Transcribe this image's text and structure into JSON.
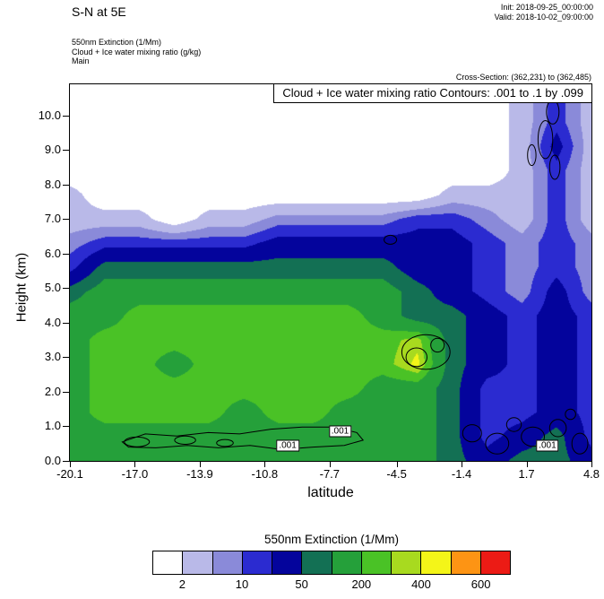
{
  "header": {
    "title": "S-N at 5E",
    "init": "Init: 2018-09-25_00:00:00",
    "valid": "Valid: 2018-10-02_09:00:00",
    "field_lines": [
      "550nm Extinction  (1/Mm)",
      "Cloud + Ice water mixing ratio  (g/kg)",
      "Main"
    ],
    "cross_section": "Cross-Section: (362,231) to (362,485)"
  },
  "chart_data": {
    "type": "filled_contour",
    "title": "Cloud + Ice water mixing ratio Contours: .001 to .1 by .099",
    "field_name": "550nm Extinction (1/Mm)",
    "overlay_name": "Cloud + Ice water mixing ratio (g/kg)",
    "xlabel": "latitude",
    "ylabel": "Height (km)",
    "xlim": [
      -20.1,
      4.8
    ],
    "ylim": [
      0,
      10.9
    ],
    "x_ticks": [
      "-20.1",
      "-17.0",
      "-13.9",
      "-10.8",
      "-7.7",
      "-4.5",
      "-1.4",
      "1.7",
      "4.8"
    ],
    "y_ticks": [
      "0.0",
      "1.0",
      "2.0",
      "3.0",
      "4.0",
      "5.0",
      "6.0",
      "7.0",
      "8.0",
      "9.0",
      "10.0"
    ],
    "levels": [
      2,
      5,
      10,
      20,
      50,
      100,
      200,
      300,
      400,
      500,
      600
    ],
    "palette": [
      "#ffffff",
      "#b9b9e8",
      "#8a8ad9",
      "#2b2bd0",
      "#04049c",
      "#137054",
      "#25a03a",
      "#4ac226",
      "#a8da1f",
      "#f4f518",
      "#fd9414",
      "#ec1b15"
    ],
    "grid": {
      "units": "1/Mm",
      "x": [
        -20.1,
        -18.44,
        -16.78,
        -15.12,
        -13.46,
        -11.8,
        -10.14,
        -8.48,
        -6.82,
        -5.16,
        -3.5,
        -1.84,
        -0.18,
        1.48,
        3.14,
        4.8
      ],
      "y": [
        0,
        0.7,
        1.4,
        2.1,
        2.8,
        3.5,
        4.2,
        4.9,
        5.6,
        6.3,
        7.0,
        7.7,
        8.4,
        9.1,
        9.8,
        10.5
      ],
      "values": [
        [
          150,
          150,
          150,
          150,
          150,
          150,
          150,
          150,
          150,
          150,
          150,
          70,
          30,
          70,
          70,
          30
        ],
        [
          150,
          150,
          150,
          150,
          150,
          150,
          150,
          150,
          150,
          150,
          150,
          70,
          15,
          30,
          70,
          15
        ],
        [
          150,
          250,
          250,
          250,
          250,
          150,
          250,
          250,
          150,
          150,
          150,
          70,
          15,
          15,
          30,
          15
        ],
        [
          150,
          250,
          250,
          250,
          250,
          250,
          250,
          250,
          250,
          150,
          150,
          70,
          15,
          15,
          30,
          15
        ],
        [
          150,
          250,
          250,
          150,
          250,
          250,
          250,
          250,
          250,
          250,
          450,
          70,
          30,
          15,
          30,
          15
        ],
        [
          150,
          250,
          250,
          250,
          250,
          250,
          250,
          250,
          250,
          250,
          350,
          70,
          30,
          15,
          30,
          15
        ],
        [
          150,
          150,
          250,
          250,
          250,
          250,
          250,
          250,
          250,
          150,
          70,
          70,
          30,
          15,
          30,
          15
        ],
        [
          70,
          150,
          150,
          150,
          150,
          150,
          150,
          150,
          150,
          150,
          70,
          30,
          15,
          7,
          30,
          7
        ],
        [
          15,
          70,
          70,
          70,
          70,
          70,
          70,
          70,
          70,
          70,
          30,
          30,
          15,
          7,
          15,
          7
        ],
        [
          7,
          15,
          15,
          15,
          15,
          15,
          30,
          30,
          30,
          30,
          30,
          30,
          15,
          7,
          15,
          7
        ],
        [
          3,
          3,
          3,
          1,
          3,
          3,
          7,
          7,
          7,
          7,
          15,
          15,
          7,
          3,
          15,
          3
        ],
        [
          3,
          1,
          1,
          1,
          1,
          1,
          1,
          1,
          1,
          1,
          1,
          3,
          3,
          3,
          15,
          3
        ],
        [
          1,
          1,
          1,
          1,
          1,
          1,
          1,
          1,
          1,
          1,
          1,
          1,
          1,
          3,
          15,
          3
        ],
        [
          1,
          1,
          1,
          1,
          1,
          1,
          1,
          1,
          1,
          1,
          1,
          1,
          1,
          3,
          30,
          3
        ],
        [
          1,
          1,
          1,
          1,
          1,
          1,
          1,
          1,
          1,
          1,
          1,
          1,
          1,
          3,
          15,
          3
        ],
        [
          1,
          1,
          1,
          1,
          1,
          1,
          1,
          1,
          1,
          1,
          1,
          1,
          1,
          3,
          15,
          3
        ]
      ]
    },
    "contour_labels": [
      {
        "text": ".001",
        "lat": -9.7,
        "h": 0.45
      },
      {
        "text": ".001",
        "lat": -7.2,
        "h": 0.85
      },
      {
        "text": ".001",
        "lat": 2.7,
        "h": 0.45
      }
    ],
    "contour_ellipses": [
      [
        -16.9,
        0.55,
        0.6,
        0.14
      ],
      [
        -14.6,
        0.6,
        0.5,
        0.12
      ],
      [
        -12.7,
        0.52,
        0.4,
        0.1
      ],
      [
        -3.1,
        3.15,
        1.15,
        0.5
      ],
      [
        -3.55,
        3.0,
        0.5,
        0.27
      ],
      [
        -2.55,
        3.35,
        0.32,
        0.2
      ],
      [
        -4.8,
        6.4,
        0.3,
        0.13
      ],
      [
        -0.9,
        0.8,
        0.45,
        0.25
      ],
      [
        0.3,
        0.5,
        0.55,
        0.3
      ],
      [
        1.1,
        1.05,
        0.35,
        0.2
      ],
      [
        2.0,
        0.7,
        0.55,
        0.28
      ],
      [
        3.2,
        0.95,
        0.4,
        0.25
      ],
      [
        4.25,
        0.5,
        0.38,
        0.3
      ],
      [
        3.8,
        1.35,
        0.25,
        0.15
      ],
      [
        2.6,
        9.3,
        0.35,
        0.55
      ],
      [
        3.05,
        8.5,
        0.25,
        0.35
      ],
      [
        2.95,
        10.1,
        0.3,
        0.35
      ],
      [
        1.95,
        8.85,
        0.2,
        0.3
      ]
    ],
    "contour_path": [
      [
        -17.6,
        0.55
      ],
      [
        -16.5,
        0.78
      ],
      [
        -15.0,
        0.72
      ],
      [
        -13.5,
        0.82
      ],
      [
        -12.0,
        0.78
      ],
      [
        -10.5,
        0.92
      ],
      [
        -9.0,
        0.98
      ],
      [
        -7.5,
        0.98
      ],
      [
        -6.4,
        0.82
      ],
      [
        -6.1,
        0.6
      ],
      [
        -7.0,
        0.45
      ],
      [
        -8.5,
        0.4
      ],
      [
        -10.0,
        0.33
      ],
      [
        -11.5,
        0.45
      ],
      [
        -13.0,
        0.38
      ],
      [
        -14.5,
        0.45
      ],
      [
        -16.0,
        0.38
      ],
      [
        -17.3,
        0.4
      ]
    ],
    "colorbar": {
      "title": "550nm Extinction  (1/Mm)",
      "tick_labels": [
        "2",
        "10",
        "50",
        "200",
        "400",
        "600"
      ],
      "tick_positions": [
        1,
        3,
        5,
        7,
        9,
        11
      ]
    }
  }
}
